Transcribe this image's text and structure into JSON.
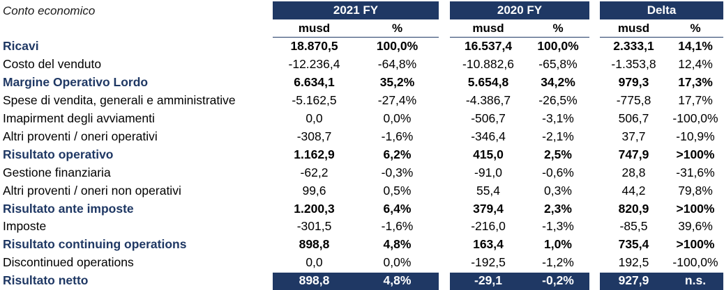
{
  "title": "Conto economico",
  "groups": [
    "2021 FY",
    "2020 FY",
    "Delta"
  ],
  "subheaders": [
    "musd",
    "%",
    "musd",
    "%",
    "musd",
    "%"
  ],
  "rows": [
    {
      "label": "Ricavi",
      "bold": true,
      "v": [
        "18.870,5",
        "100,0%",
        "16.537,4",
        "100,0%",
        "2.333,1",
        "14,1%"
      ]
    },
    {
      "label": "Costo del venduto",
      "bold": false,
      "v": [
        "-12.236,4",
        "-64,8%",
        "-10.882,6",
        "-65,8%",
        "-1.353,8",
        "12,4%"
      ]
    },
    {
      "label": "Margine Operativo Lordo",
      "bold": true,
      "v": [
        "6.634,1",
        "35,2%",
        "5.654,8",
        "34,2%",
        "979,3",
        "17,3%"
      ]
    },
    {
      "label": "Spese di vendita, generali e amministrative",
      "bold": false,
      "v": [
        "-5.162,5",
        "-27,4%",
        "-4.386,7",
        "-26,5%",
        "-775,8",
        "17,7%"
      ]
    },
    {
      "label": "Imapirment degli avviamenti",
      "bold": false,
      "v": [
        "0,0",
        "0,0%",
        "-506,7",
        "-3,1%",
        "506,7",
        "-100,0%"
      ]
    },
    {
      "label": "Altri proventi / oneri operativi",
      "bold": false,
      "v": [
        "-308,7",
        "-1,6%",
        "-346,4",
        "-2,1%",
        "37,7",
        "-10,9%"
      ]
    },
    {
      "label": "Risultato operativo",
      "bold": true,
      "v": [
        "1.162,9",
        "6,2%",
        "415,0",
        "2,5%",
        "747,9",
        ">100%"
      ]
    },
    {
      "label": "Gestione finanziaria",
      "bold": false,
      "v": [
        "-62,2",
        "-0,3%",
        "-91,0",
        "-0,6%",
        "28,8",
        "-31,6%"
      ]
    },
    {
      "label": "Altri proventi / oneri non operativi",
      "bold": false,
      "v": [
        "99,6",
        "0,5%",
        "55,4",
        "0,3%",
        "44,2",
        "79,8%"
      ]
    },
    {
      "label": "Risultato ante imposte",
      "bold": true,
      "v": [
        "1.200,3",
        "6,4%",
        "379,4",
        "2,3%",
        "820,9",
        ">100%"
      ]
    },
    {
      "label": "Imposte",
      "bold": false,
      "v": [
        "-301,5",
        "-1,6%",
        "-216,0",
        "-1,3%",
        "-85,5",
        "39,6%"
      ]
    },
    {
      "label": "Risultato continuing operations",
      "bold": true,
      "v": [
        "898,8",
        "4,8%",
        "163,4",
        "1,0%",
        "735,4",
        ">100%"
      ]
    },
    {
      "label": "Discontinued operations",
      "bold": false,
      "v": [
        "0,0",
        "0,0%",
        "-192,5",
        "-1,2%",
        "192,5",
        "-100,0%"
      ]
    },
    {
      "label": "Risultato netto",
      "bold": true,
      "last": true,
      "v": [
        "898,8",
        "4,8%",
        "-29,1",
        "-0,2%",
        "927,9",
        "n.s."
      ]
    }
  ]
}
